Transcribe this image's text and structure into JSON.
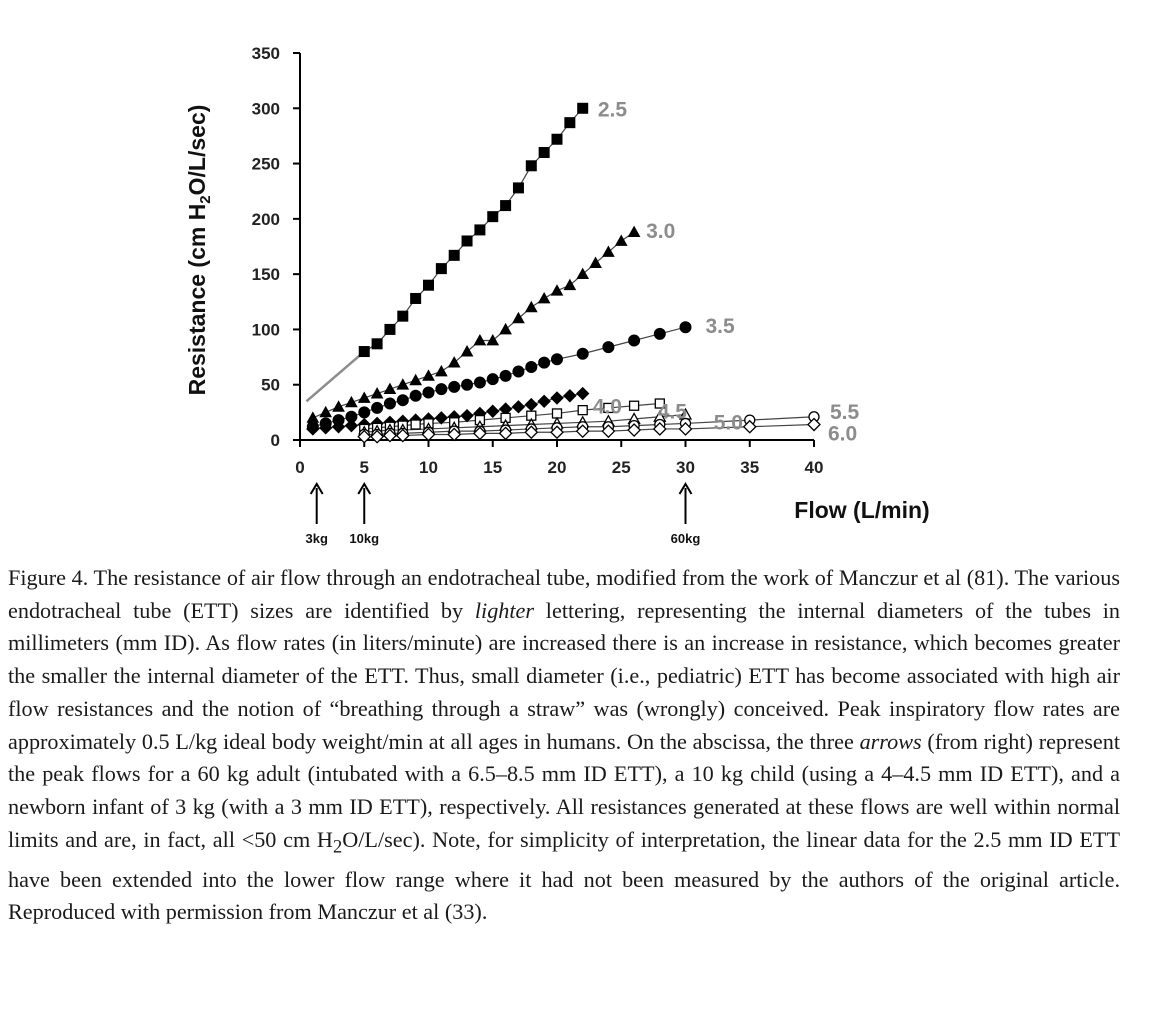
{
  "chart_data": {
    "type": "scatter",
    "title": "",
    "xlabel": "Flow (L/min)",
    "ylabel": "Resistance (cm H2O/L/sec)",
    "xlim": [
      0,
      40
    ],
    "ylim": [
      0,
      350
    ],
    "xticks": [
      "0",
      "5",
      "10",
      "15",
      "20",
      "25",
      "30",
      "35",
      "40"
    ],
    "yticks": [
      "0",
      "50",
      "100",
      "150",
      "200",
      "250",
      "300",
      "350"
    ],
    "grid": false,
    "series": [
      {
        "name": "2.5",
        "marker": "square-filled",
        "x": [
          5,
          6,
          7,
          8,
          9,
          10,
          11,
          12,
          13,
          14,
          15,
          16,
          17,
          18,
          19,
          20,
          21,
          22
        ],
        "y": [
          80,
          87,
          100,
          112,
          128,
          140,
          155,
          167,
          180,
          190,
          202,
          212,
          228,
          248,
          260,
          272,
          287,
          300
        ],
        "extension": {
          "x": [
            0.5,
            5
          ],
          "y": [
            35,
            80
          ]
        }
      },
      {
        "name": "3.0",
        "marker": "triangle-filled",
        "x": [
          1,
          2,
          3,
          4,
          5,
          6,
          7,
          8,
          9,
          10,
          11,
          12,
          13,
          14,
          15,
          16,
          17,
          18,
          19,
          20,
          21,
          22,
          23,
          24,
          25,
          26
        ],
        "y": [
          20,
          25,
          30,
          34,
          38,
          42,
          46,
          50,
          54,
          58,
          62,
          70,
          80,
          90,
          90,
          100,
          110,
          120,
          128,
          135,
          140,
          150,
          160,
          170,
          180,
          188
        ]
      },
      {
        "name": "3.5",
        "marker": "circle-filled",
        "x": [
          1,
          2,
          3,
          4,
          5,
          6,
          7,
          8,
          9,
          10,
          11,
          12,
          13,
          14,
          15,
          16,
          17,
          18,
          19,
          20,
          22,
          24,
          26,
          28,
          30
        ],
        "y": [
          12,
          15,
          18,
          21,
          25,
          29,
          33,
          36,
          40,
          43,
          46,
          48,
          50,
          52,
          55,
          58,
          62,
          66,
          70,
          73,
          78,
          84,
          90,
          96,
          102
        ]
      },
      {
        "name": "4.0",
        "marker": "diamond-filled",
        "x": [
          1,
          2,
          3,
          4,
          5,
          6,
          7,
          8,
          9,
          10,
          11,
          12,
          13,
          14,
          15,
          16,
          17,
          18,
          19,
          20,
          21,
          22
        ],
        "y": [
          10,
          11,
          12,
          13,
          14,
          15,
          16,
          17,
          18,
          19,
          20,
          21,
          22,
          24,
          26,
          28,
          30,
          32,
          35,
          38,
          40,
          42
        ]
      },
      {
        "name": "4.5",
        "marker": "square-open",
        "x": [
          5,
          6,
          7,
          8,
          9,
          10,
          12,
          14,
          16,
          18,
          20,
          22,
          24,
          26,
          28
        ],
        "y": [
          10,
          11,
          12,
          13,
          14,
          15,
          16,
          18,
          20,
          22,
          24,
          27,
          29,
          31,
          33
        ]
      },
      {
        "name": "5.0",
        "marker": "triangle-open",
        "x": [
          5,
          6,
          7,
          8,
          10,
          12,
          14,
          16,
          18,
          20,
          22,
          24,
          26,
          28,
          30
        ],
        "y": [
          7,
          8,
          9,
          9,
          10,
          11,
          12,
          13,
          14,
          15,
          16,
          17,
          19,
          21,
          23
        ]
      },
      {
        "name": "5.5",
        "marker": "circle-open",
        "x": [
          5,
          6,
          7,
          8,
          10,
          12,
          14,
          16,
          18,
          20,
          22,
          24,
          26,
          28,
          30,
          35,
          40
        ],
        "y": [
          5,
          5,
          6,
          6,
          7,
          8,
          8,
          9,
          10,
          11,
          12,
          12,
          13,
          14,
          15,
          18,
          21
        ]
      },
      {
        "name": "6.0",
        "marker": "diamond-open",
        "x": [
          5,
          6,
          7,
          8,
          10,
          12,
          14,
          16,
          18,
          20,
          22,
          24,
          26,
          28,
          30,
          35,
          40
        ],
        "y": [
          3,
          3,
          4,
          4,
          5,
          5,
          6,
          6,
          7,
          7,
          8,
          8,
          9,
          10,
          10,
          12,
          14
        ]
      }
    ],
    "arrows": [
      {
        "x": 1.3,
        "label": "3kg"
      },
      {
        "x": 5,
        "label": "10kg"
      },
      {
        "x": 30,
        "label": "60kg"
      }
    ]
  },
  "caption": {
    "label": "Figure 4.",
    "p1": " The resistance of air flow through an endotracheal tube, modified from the work of Manczur et al (81). The various endotracheal tube (ETT) sizes are identified by ",
    "em1": "lighter",
    "p2": " lettering, representing the internal diameters of the tubes in millimeters (mm ID). As flow rates (in liters/minute) are increased there is an increase in resistance, which becomes greater the smaller the internal diameter of the ETT. Thus, small diameter (i.e., pediatric) ETT has become associated with high air flow resistances and the notion of “breathing through a straw” was (wrongly) conceived. Peak inspiratory flow rates are approximately 0.5 L/kg ideal body weight/min at all ages in humans. On the abscissa, the three ",
    "em2": "arrows",
    "p3": " (from right) represent the peak flows for a 60 kg adult (intubated with a 6.5–8.5 mm ID ETT), a 10 kg child (using a 4–4.5 mm ID ETT), and a newborn infant of 3 kg (with a 3 mm ID ETT), respectively. All resistances generated at these flows are well within normal limits and are, in fact, all <50 cm H",
    "sub": "2",
    "p4": "O/L/sec). Note, for simplicity of interpretation, the linear data for the 2.5 mm ID ETT have been extended into the lower flow range where it had not been measured by the authors of the original article. Reproduced with permission from Manczur et al (33)."
  }
}
